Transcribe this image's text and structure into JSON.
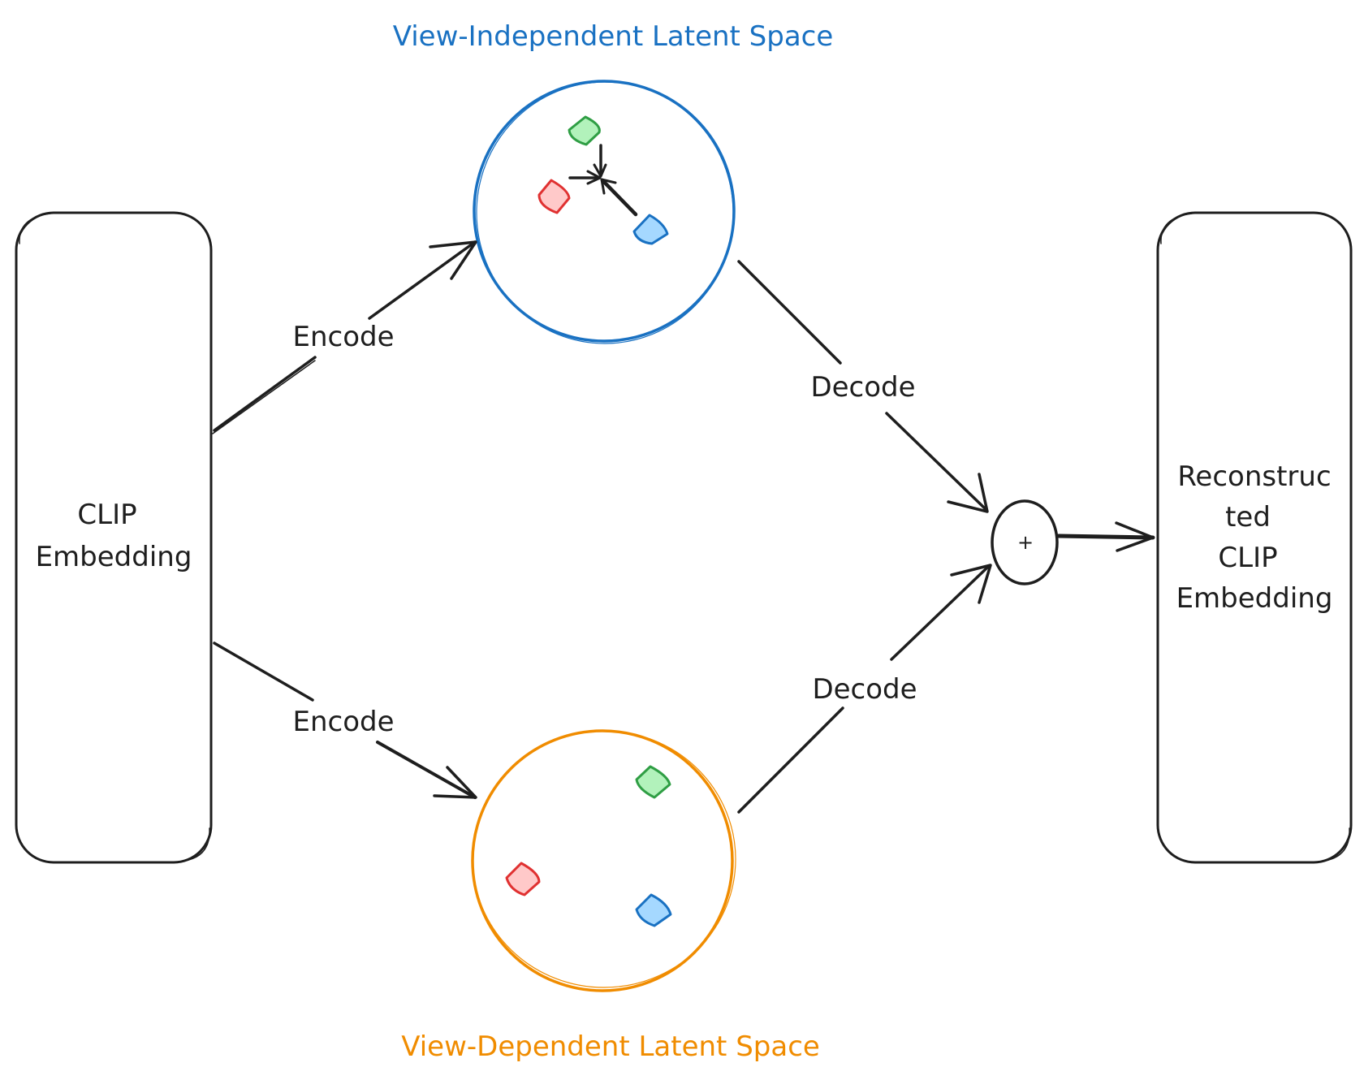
{
  "titles": {
    "view_independent": "View-Independent Latent Space",
    "view_dependent": "View-Dependent Latent Space"
  },
  "input_box": {
    "line1": "CLIP",
    "line2": "Embedding"
  },
  "output_box": {
    "line1": "Reconstruc",
    "line2": "ted",
    "line3": "CLIP",
    "line4": "Embedding"
  },
  "edges": {
    "encode_top": "Encode",
    "encode_bottom": "Encode",
    "decode_top": "Decode",
    "decode_bottom": "Decode"
  },
  "sum_node": {
    "symbol": "+"
  },
  "colors": {
    "ink": "#1e1e1e",
    "view_independent": "#1971c2",
    "view_dependent": "#f08c00",
    "green_stroke": "#2f9e44",
    "green_fill": "#b2f2bb",
    "red_stroke": "#e03131",
    "red_fill": "#ffc9c9",
    "blue_stroke": "#1971c2",
    "blue_fill": "#a5d8ff"
  }
}
